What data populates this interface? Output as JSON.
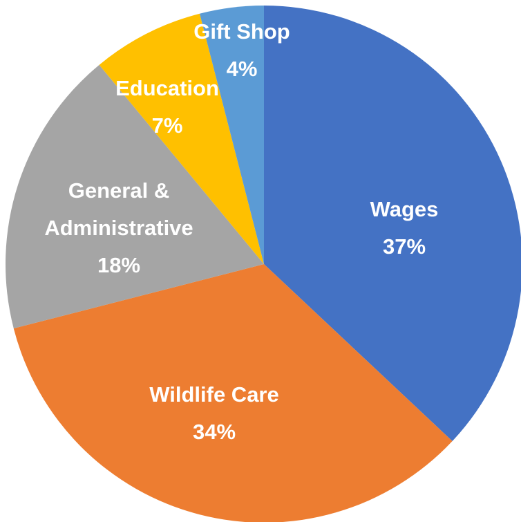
{
  "chart_data": {
    "type": "pie",
    "categories": [
      "Wages",
      "Wildlife Care",
      "General & Administrative",
      "Education",
      "Gift Shop"
    ],
    "values": [
      37,
      34,
      18,
      7,
      4
    ],
    "value_labels": [
      "37%",
      "34%",
      "18%",
      "7%",
      "4%"
    ],
    "colors": [
      "#4472c4",
      "#ed7d31",
      "#a5a5a5",
      "#ffc000",
      "#5b9bd5"
    ]
  }
}
